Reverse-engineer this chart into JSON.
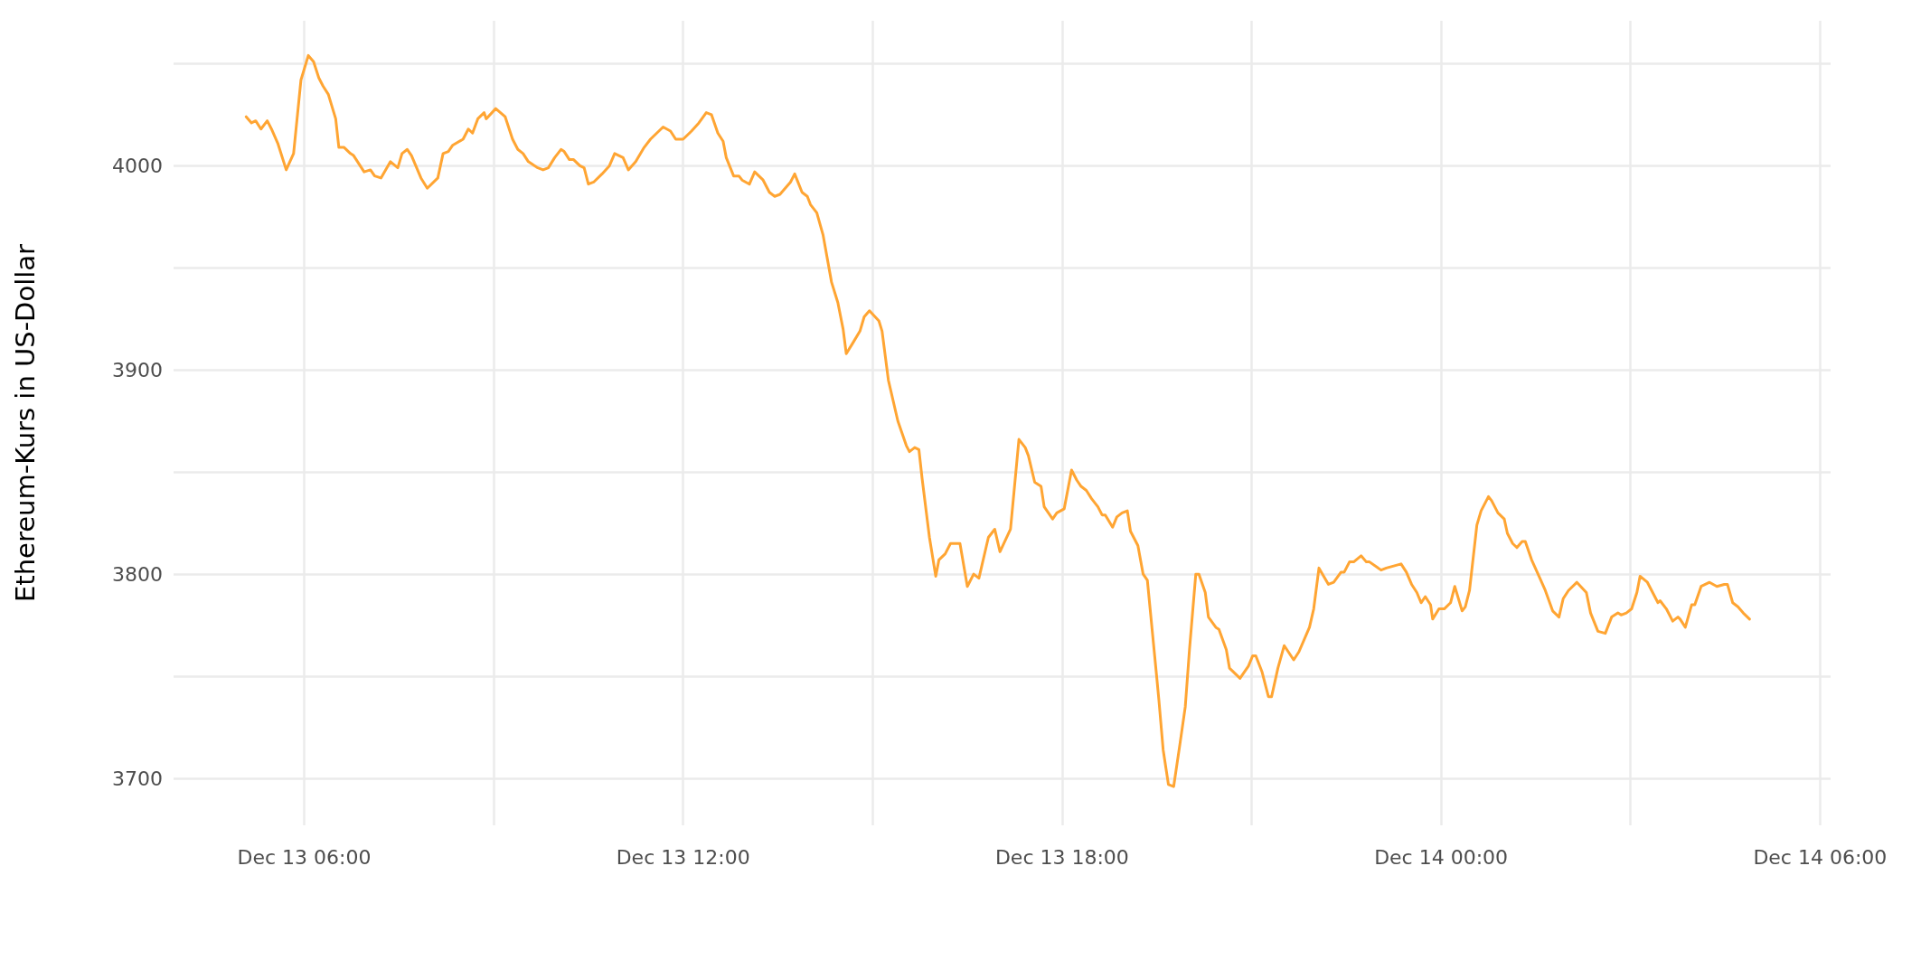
{
  "chart_data": {
    "type": "line",
    "ylabel": "Ethereum-Kurs in US-Dollar",
    "xlim": [
      "--12-13T03:56",
      "--12-14T06:10"
    ],
    "ylim": [
      3677,
      4071
    ],
    "xticks": [
      {
        "value": "--12-13T06:00",
        "label": "Dec 13 06:00"
      },
      {
        "value": "--12-13T09:00",
        "label": null
      },
      {
        "value": "--12-13T12:00",
        "label": "Dec 13 12:00"
      },
      {
        "value": "--12-13T15:00",
        "label": null
      },
      {
        "value": "--12-13T18:00",
        "label": "Dec 13 18:00"
      },
      {
        "value": "--12-13T21:00",
        "label": null
      },
      {
        "value": "--12-14T00:00",
        "label": "Dec 14 00:00"
      },
      {
        "value": "--12-14T03:00",
        "label": null
      },
      {
        "value": "--12-14T06:00",
        "label": "Dec 14 06:00"
      }
    ],
    "yticks": [
      3700,
      {
        "value": 3750,
        "label": null
      },
      3800,
      {
        "value": 3850,
        "label": null
      },
      3900,
      {
        "value": 3950,
        "label": null
      },
      4000,
      {
        "value": 4050,
        "label": null
      }
    ],
    "grid": true,
    "marker": "none",
    "line_style": "solid",
    "series": [
      {
        "color": "#ffa533",
        "x": [
          "--12-13T05:05",
          "--12-13T05:10",
          "--12-13T05:14",
          "--12-13T05:19",
          "--12-13T05:25",
          "--12-13T05:29",
          "--12-13T05:35",
          "--12-13T05:43",
          "--12-13T05:50",
          "--12-13T05:57",
          "--12-13T06:04",
          "--12-13T06:09",
          "--12-13T06:14",
          "--12-13T06:18",
          "--12-13T06:23",
          "--12-13T06:30",
          "--12-13T06:33",
          "--12-13T06:38",
          "--12-13T06:44",
          "--12-13T06:47",
          "--12-13T06:57",
          "--12-13T07:03",
          "--12-13T07:07",
          "--12-13T07:13",
          "--12-13T07:22",
          "--12-13T07:29",
          "--12-13T07:33",
          "--12-13T07:38",
          "--12-13T07:42",
          "--12-13T07:51",
          "--12-13T07:57",
          "--12-13T08:07",
          "--12-13T08:12",
          "--12-13T08:17",
          "--12-13T08:21",
          "--12-13T08:31",
          "--12-13T08:36",
          "--12-13T08:40",
          "--12-13T08:45",
          "--12-13T08:51",
          "--12-13T08:53",
          "--12-13T09:02",
          "--12-13T09:11",
          "--12-13T09:18",
          "--12-13T09:23",
          "--12-13T09:28",
          "--12-13T09:33",
          "--12-13T09:42",
          "--12-13T09:47",
          "--12-13T09:52",
          "--12-13T09:58",
          "--12-13T10:04",
          "--12-13T10:07",
          "--12-13T10:12",
          "--12-13T10:16",
          "--12-13T10:22",
          "--12-13T10:26",
          "--12-13T10:30",
          "--12-13T10:35",
          "--12-13T10:43",
          "--12-13T10:50",
          "--12-13T10:55",
          "--12-13T11:03",
          "--12-13T11:08",
          "--12-13T11:15",
          "--12-13T11:23",
          "--12-13T11:29",
          "--12-13T11:41",
          "--12-13T11:48",
          "--12-13T11:53",
          "--12-13T12:00",
          "--12-13T12:08",
          "--12-13T12:15",
          "--12-13T12:22",
          "--12-13T12:27",
          "--12-13T12:33",
          "--12-13T12:38",
          "--12-13T12:41",
          "--12-13T12:48",
          "--12-13T12:53",
          "--12-13T12:56",
          "--12-13T13:03",
          "--12-13T13:08",
          "--12-13T13:16",
          "--12-13T13:22",
          "--12-13T13:27",
          "--12-13T13:32",
          "--12-13T13:42",
          "--12-13T13:46",
          "--12-13T13:53",
          "--12-13T13:58",
          "--12-13T14:01",
          "--12-13T14:07",
          "--12-13T14:13",
          "--12-13T14:21",
          "--12-13T14:27",
          "--12-13T14:32",
          "--12-13T14:35",
          "--12-13T14:41",
          "--12-13T14:48",
          "--12-13T14:52",
          "--12-13T14:57",
          "--12-13T15:06",
          "--12-13T15:09",
          "--12-13T15:15",
          "--12-13T15:24",
          "--12-13T15:32",
          "--12-13T15:35",
          "--12-13T15:40",
          "--12-13T15:44",
          "--12-13T15:47",
          "--12-13T15:54",
          "--12-13T16:00",
          "--12-13T16:03",
          "--12-13T16:09",
          "--12-13T16:14",
          "--12-13T16:23",
          "--12-13T16:30",
          "--12-13T16:36",
          "--12-13T16:41",
          "--12-13T16:50",
          "--12-13T16:56",
          "--12-13T17:01",
          "--12-13T17:11",
          "--12-13T17:19",
          "--12-13T17:25",
          "--12-13T17:28",
          "--12-13T17:34",
          "--12-13T17:40",
          "--12-13T17:43",
          "--12-13T17:51",
          "--12-13T17:55",
          "--12-13T18:02",
          "--12-13T18:09",
          "--12-13T18:14",
          "--12-13T18:18",
          "--12-13T18:23",
          "--12-13T18:28",
          "--12-13T18:34",
          "--12-13T18:38",
          "--12-13T18:41",
          "--12-13T18:48",
          "--12-13T18:52",
          "--12-13T18:57",
          "--12-13T19:02",
          "--12-13T19:05",
          "--12-13T19:12",
          "--12-13T19:17",
          "--12-13T19:21",
          "--12-13T19:30",
          "--12-13T19:32",
          "--12-13T19:36",
          "--12-13T19:41",
          "--12-13T19:46",
          "--12-13T19:52",
          "--12-13T19:57",
          "--12-13T20:01",
          "--12-13T20:07",
          "--12-13T20:10",
          "--12-13T20:16",
          "--12-13T20:19",
          "--12-13T20:26",
          "--12-13T20:29",
          "--12-13T20:36",
          "--12-13T20:39",
          "--12-13T20:43",
          "--12-13T20:49",
          "--12-13T20:57",
          "--12-13T21:01",
          "--12-13T21:04",
          "--12-13T21:10",
          "--12-13T21:16",
          "--12-13T21:19",
          "--12-13T21:25",
          "--12-13T21:31",
          "--12-13T21:40",
          "--12-13T21:45",
          "--12-13T21:55",
          "--12-13T21:59",
          "--12-13T22:04",
          "--12-13T22:13",
          "--12-13T22:18",
          "--12-13T22:25",
          "--12-13T22:28",
          "--12-13T22:33",
          "--12-13T22:37",
          "--12-13T22:44",
          "--12-13T22:49",
          "--12-13T22:52",
          "--12-13T23:03",
          "--12-13T23:08",
          "--12-13T23:22",
          "--12-13T23:27",
          "--12-13T23:32",
          "--12-13T23:37",
          "--12-13T23:41",
          "--12-13T23:45",
          "--12-13T23:50",
          "--12-13T23:52",
          "--12-13T23:58",
          "--12-14T00:03",
          "--12-14T00:09",
          "--12-14T00:13",
          "--12-14T00:20",
          "--12-14T00:23",
          "--12-14T00:27",
          "--12-14T00:34",
          "--12-14T00:38",
          "--12-14T00:45",
          "--12-14T00:48",
          "--12-14T00:54",
          "--12-14T01:00",
          "--12-14T01:03",
          "--12-14T01:08",
          "--12-14T01:12",
          "--12-14T01:17",
          "--12-14T01:20",
          "--12-14T01:26",
          "--12-14T01:33",
          "--12-14T01:39",
          "--12-14T01:46",
          "--12-14T01:52",
          "--12-14T01:56",
          "--12-14T02:01",
          "--12-14T02:09",
          "--12-14T02:18",
          "--12-14T02:22",
          "--12-14T02:29",
          "--12-14T02:36",
          "--12-14T02:42",
          "--12-14T02:48",
          "--12-14T02:51",
          "--12-14T02:56",
          "--12-14T03:01",
          "--12-14T03:06",
          "--12-14T03:09",
          "--12-14T03:16",
          "--12-14T03:21",
          "--12-14T03:26",
          "--12-14T03:28",
          "--12-14T03:34",
          "--12-14T03:40",
          "--12-14T03:45",
          "--12-14T03:47",
          "--12-14T03:52",
          "--12-14T03:58",
          "--12-14T04:01",
          "--12-14T04:07",
          "--12-14T04:15",
          "--12-14T04:22",
          "--12-14T04:29",
          "--12-14T04:32",
          "--12-14T04:37",
          "--12-14T04:42",
          "--12-14T04:47",
          "--12-14T04:53"
        ],
        "values": [
          4024,
          4021,
          4022,
          4018,
          4022,
          4018,
          4011,
          3998,
          4006,
          4042,
          4054,
          4051,
          4043,
          4039,
          4035,
          4023,
          4009,
          4009,
          4006,
          4005,
          3997,
          3998,
          3995,
          3994,
          4002,
          3999,
          4006,
          4008,
          4005,
          3994,
          3989,
          3994,
          4006,
          4007,
          4010,
          4013,
          4018,
          4016,
          4023,
          4026,
          4023,
          4028,
          4024,
          4013,
          4008,
          4006,
          4002,
          3999,
          3998,
          3999,
          4004,
          4008,
          4007,
          4003,
          4003,
          4000,
          3999,
          3991,
          3992,
          3996,
          4000,
          4006,
          4004,
          3998,
          4002,
          4009,
          4013,
          4019,
          4017,
          4013,
          4013,
          4017,
          4021,
          4026,
          4025,
          4016,
          4012,
          4004,
          3995,
          3995,
          3993,
          3991,
          3997,
          3993,
          3987,
          3985,
          3986,
          3992,
          3996,
          3987,
          3985,
          3981,
          3977,
          3966,
          3943,
          3933,
          3920,
          3908,
          3913,
          3919,
          3926,
          3929,
          3924,
          3919,
          3895,
          3875,
          3863,
          3860,
          3862,
          3861,
          3847,
          3818,
          3799,
          3807,
          3810,
          3815,
          3815,
          3794,
          3800,
          3798,
          3818,
          3822,
          3811,
          3822,
          3866,
          3862,
          3858,
          3845,
          3843,
          3833,
          3827,
          3830,
          3832,
          3851,
          3846,
          3843,
          3841,
          3837,
          3833,
          3829,
          3829,
          3823,
          3828,
          3830,
          3831,
          3821,
          3814,
          3800,
          3797,
          3749,
          3738,
          3714,
          3697,
          3696,
          3717,
          3735,
          3763,
          3800,
          3800,
          3791,
          3779,
          3774,
          3773,
          3763,
          3754,
          3752,
          3749,
          3755,
          3760,
          3760,
          3752,
          3740,
          3740,
          3754,
          3765,
          3758,
          3762,
          3774,
          3783,
          3803,
          3795,
          3796,
          3801,
          3801,
          3806,
          3806,
          3809,
          3806,
          3806,
          3802,
          3803,
          3805,
          3801,
          3795,
          3791,
          3786,
          3789,
          3785,
          3778,
          3783,
          3783,
          3786,
          3794,
          3782,
          3784,
          3792,
          3824,
          3831,
          3838,
          3836,
          3830,
          3827,
          3820,
          3815,
          3813,
          3816,
          3816,
          3807,
          3799,
          3792,
          3782,
          3779,
          3788,
          3792,
          3796,
          3791,
          3781,
          3772,
          3771,
          3779,
          3781,
          3780,
          3781,
          3783,
          3791,
          3799,
          3796,
          3791,
          3786,
          3787,
          3783,
          3777,
          3779,
          3778,
          3774,
          3785,
          3785,
          3794,
          3796,
          3794,
          3795,
          3795,
          3786,
          3784,
          3781,
          3778
        ]
      }
    ]
  }
}
